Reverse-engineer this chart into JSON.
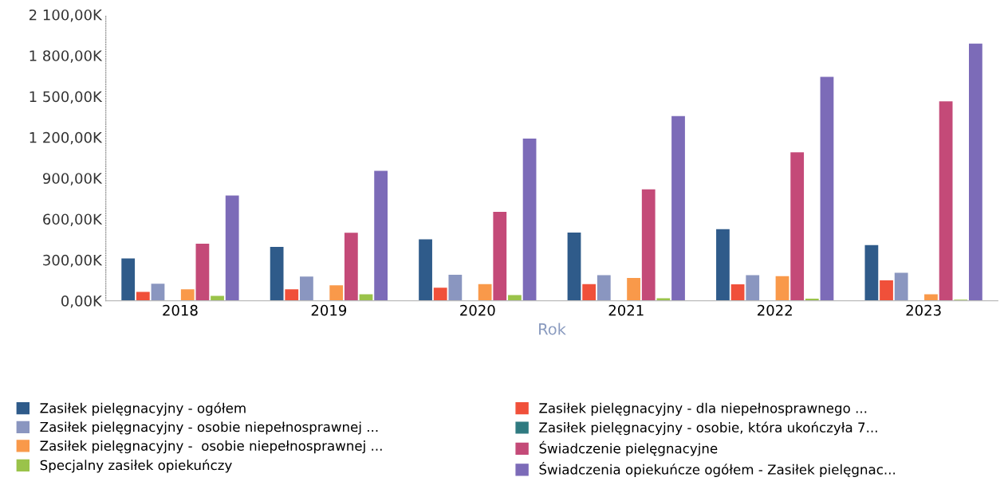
{
  "chart_data": {
    "type": "bar",
    "xlabel": "Rok",
    "categories": [
      "2018",
      "2019",
      "2020",
      "2021",
      "2022",
      "2023"
    ],
    "ylim": [
      0,
      2100
    ],
    "yticks": [
      {
        "value": 0,
        "label": "0,00K"
      },
      {
        "value": 300,
        "label": "300,00K"
      },
      {
        "value": 600,
        "label": "600,00K"
      },
      {
        "value": 900,
        "label": "900,00K"
      },
      {
        "value": 1200,
        "label": "1 200,00K"
      },
      {
        "value": 1500,
        "label": "1 500,00K"
      },
      {
        "value": 1800,
        "label": "1 800,00K"
      },
      {
        "value": 2100,
        "label": "2 100,00K"
      }
    ],
    "grid": false,
    "legend": "bottom",
    "series": [
      {
        "name": "Zasiłek pielęgnacyjny - ogółem",
        "color": "#2f5b8a",
        "values": [
          310,
          396,
          451,
          500,
          525,
          408
        ]
      },
      {
        "name": "Zasiłek pielęgnacyjny - dla niepełnosprawnego ...",
        "color": "#f0503a",
        "values": [
          65,
          84,
          96,
          122,
          120,
          150
        ]
      },
      {
        "name": "Zasiłek pielęgnacyjny - osobie niepełnosprawnej ...",
        "color": "#8a96c0",
        "values": [
          125,
          178,
          190,
          188,
          188,
          205
        ]
      },
      {
        "name": "Zasiłek pielęgnacyjny - osobie, która ukończyła 7...",
        "color": "#2f7a80",
        "values": [
          0,
          0,
          0,
          0,
          0,
          0
        ]
      },
      {
        "name": "Zasiłek pielęgnacyjny -  osobie niepełnosprawnej ...",
        "color": "#f9994a",
        "values": [
          84,
          113,
          122,
          167,
          180,
          48
        ]
      },
      {
        "name": "Świadczenie pielęgnacyjne",
        "color": "#c44a78",
        "values": [
          418,
          499,
          653,
          817,
          1090,
          1463
        ]
      },
      {
        "name": "Specjalny zasiłek opiekuńczy",
        "color": "#9ac34a",
        "values": [
          36,
          48,
          42,
          18,
          15,
          8
        ]
      },
      {
        "name": "Świadczenia opiekuńcze ogółem - Zasiłek pielęgnac...",
        "color": "#7c6bb8",
        "values": [
          773,
          953,
          1190,
          1355,
          1643,
          1888
        ]
      }
    ]
  }
}
